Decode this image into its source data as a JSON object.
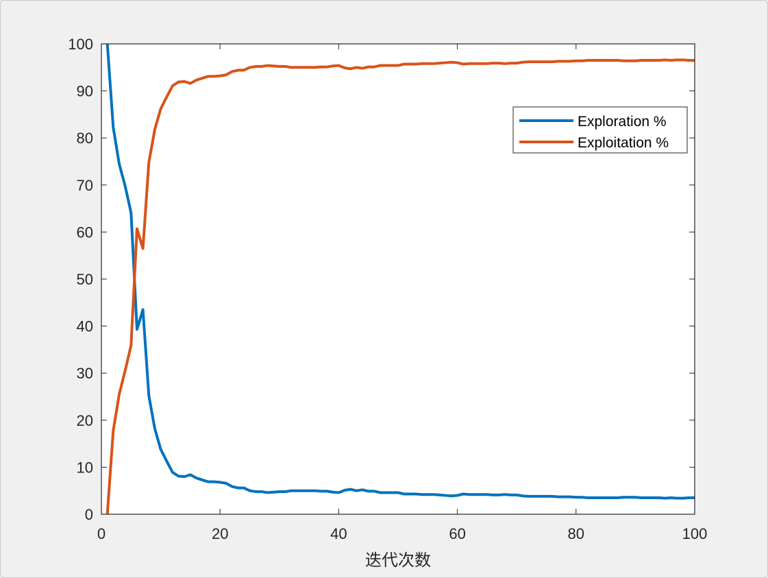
{
  "chart_data": {
    "type": "line",
    "title": "",
    "xlabel": "迭代次数",
    "ylabel": "",
    "xlim": [
      0,
      100
    ],
    "ylim": [
      0,
      100
    ],
    "xticks": [
      0,
      20,
      40,
      60,
      80,
      100
    ],
    "yticks": [
      0,
      10,
      20,
      30,
      40,
      50,
      60,
      70,
      80,
      90,
      100
    ],
    "grid": false,
    "legend_position": "top-right",
    "series": [
      {
        "name": "Exploration %",
        "color": "#0072BD",
        "x": [
          1,
          2,
          3,
          4,
          5,
          6,
          7,
          8,
          9,
          10,
          11,
          12,
          13,
          14,
          15,
          16,
          17,
          18,
          19,
          20,
          21,
          22,
          23,
          24,
          25,
          26,
          27,
          28,
          29,
          30,
          31,
          32,
          33,
          34,
          35,
          36,
          37,
          38,
          39,
          40,
          41,
          42,
          43,
          44,
          45,
          46,
          47,
          48,
          49,
          50,
          51,
          52,
          53,
          54,
          55,
          56,
          57,
          58,
          59,
          60,
          61,
          62,
          63,
          64,
          65,
          66,
          67,
          68,
          69,
          70,
          71,
          72,
          73,
          74,
          75,
          76,
          77,
          78,
          79,
          80,
          81,
          82,
          83,
          84,
          85,
          86,
          87,
          88,
          89,
          90,
          91,
          92,
          93,
          94,
          95,
          96,
          97,
          98,
          99,
          100
        ],
        "y": [
          100,
          82.2,
          74.5,
          69.8,
          64.1,
          39.3,
          43.5,
          25.2,
          18.2,
          13.8,
          11.3,
          8.9,
          8.1,
          8.0,
          8.4,
          7.7,
          7.3,
          6.9,
          6.9,
          6.8,
          6.6,
          5.9,
          5.6,
          5.6,
          5.0,
          4.8,
          4.8,
          4.6,
          4.7,
          4.8,
          4.8,
          5.0,
          5.0,
          5.0,
          5.0,
          5.0,
          4.9,
          4.9,
          4.7,
          4.6,
          5.1,
          5.3,
          5.0,
          5.2,
          4.9,
          4.9,
          4.6,
          4.6,
          4.6,
          4.6,
          4.3,
          4.3,
          4.3,
          4.2,
          4.2,
          4.2,
          4.1,
          4.0,
          3.9,
          4.0,
          4.3,
          4.2,
          4.2,
          4.2,
          4.2,
          4.1,
          4.1,
          4.2,
          4.1,
          4.1,
          3.9,
          3.8,
          3.8,
          3.8,
          3.8,
          3.8,
          3.7,
          3.7,
          3.7,
          3.6,
          3.6,
          3.5,
          3.5,
          3.5,
          3.5,
          3.5,
          3.5,
          3.6,
          3.6,
          3.6,
          3.5,
          3.5,
          3.5,
          3.5,
          3.4,
          3.5,
          3.4,
          3.4,
          3.5,
          3.5
        ]
      },
      {
        "name": "Exploitation %",
        "color": "#D95319",
        "x": [
          1,
          2,
          3,
          4,
          5,
          6,
          7,
          8,
          9,
          10,
          11,
          12,
          13,
          14,
          15,
          16,
          17,
          18,
          19,
          20,
          21,
          22,
          23,
          24,
          25,
          26,
          27,
          28,
          29,
          30,
          31,
          32,
          33,
          34,
          35,
          36,
          37,
          38,
          39,
          40,
          41,
          42,
          43,
          44,
          45,
          46,
          47,
          48,
          49,
          50,
          51,
          52,
          53,
          54,
          55,
          56,
          57,
          58,
          59,
          60,
          61,
          62,
          63,
          64,
          65,
          66,
          67,
          68,
          69,
          70,
          71,
          72,
          73,
          74,
          75,
          76,
          77,
          78,
          79,
          80,
          81,
          82,
          83,
          84,
          85,
          86,
          87,
          88,
          89,
          90,
          91,
          92,
          93,
          94,
          95,
          96,
          97,
          98,
          99,
          100
        ],
        "y": [
          0,
          17.8,
          25.5,
          30.5,
          35.9,
          60.7,
          56.5,
          74.8,
          81.8,
          86.2,
          88.7,
          91.1,
          91.9,
          92.0,
          91.6,
          92.3,
          92.7,
          93.1,
          93.1,
          93.2,
          93.4,
          94.1,
          94.4,
          94.4,
          95.0,
          95.2,
          95.2,
          95.4,
          95.3,
          95.2,
          95.2,
          95.0,
          95.0,
          95.0,
          95.0,
          95.0,
          95.1,
          95.1,
          95.3,
          95.4,
          94.9,
          94.7,
          95.0,
          94.8,
          95.1,
          95.1,
          95.4,
          95.4,
          95.4,
          95.4,
          95.7,
          95.7,
          95.7,
          95.8,
          95.8,
          95.8,
          95.9,
          96.0,
          96.1,
          96.0,
          95.7,
          95.8,
          95.8,
          95.8,
          95.8,
          95.9,
          95.9,
          95.8,
          95.9,
          95.9,
          96.1,
          96.2,
          96.2,
          96.2,
          96.2,
          96.2,
          96.3,
          96.3,
          96.3,
          96.4,
          96.4,
          96.5,
          96.5,
          96.5,
          96.5,
          96.5,
          96.5,
          96.4,
          96.4,
          96.4,
          96.5,
          96.5,
          96.5,
          96.5,
          96.6,
          96.5,
          96.6,
          96.6,
          96.5,
          96.5
        ]
      }
    ]
  }
}
